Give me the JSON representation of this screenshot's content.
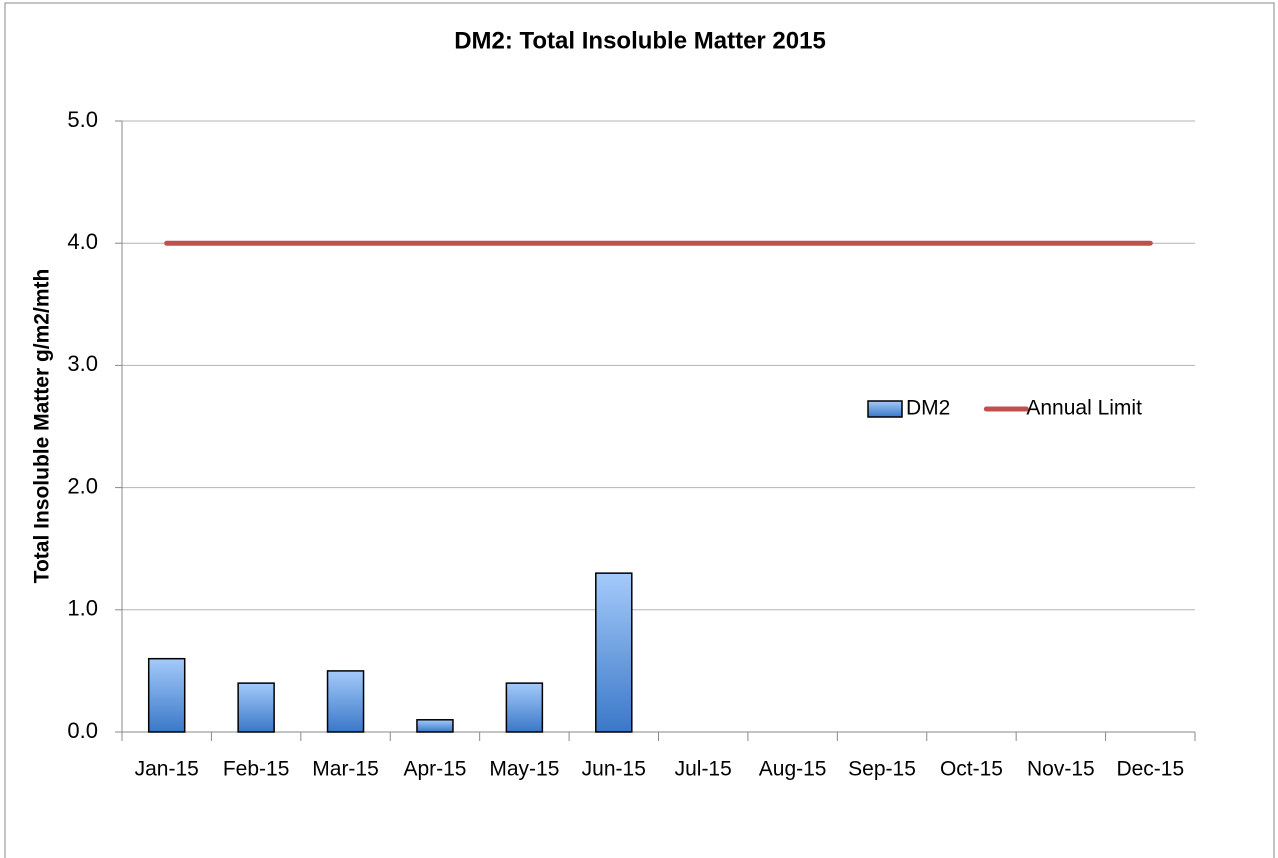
{
  "chart_data": {
    "type": "bar",
    "title": "DM2: Total Insoluble Matter 2015",
    "y_label": "Total Insoluble Matter  g/m2/mth",
    "categories": [
      "Jan-15",
      "Feb-15",
      "Mar-15",
      "Apr-15",
      "May-15",
      "Jun-15",
      "Jul-15",
      "Aug-15",
      "Sep-15",
      "Oct-15",
      "Nov-15",
      "Dec-15"
    ],
    "series": [
      {
        "name": "DM2",
        "type": "bar",
        "color": "#3a78c8",
        "values": [
          0.6,
          0.4,
          0.5,
          0.1,
          0.4,
          1.3,
          null,
          null,
          null,
          null,
          null,
          null
        ]
      },
      {
        "name": "Annual Limit",
        "type": "line",
        "color": "#c0504d",
        "values": [
          4,
          4,
          4,
          4,
          4,
          4,
          4,
          4,
          4,
          4,
          4,
          4
        ]
      }
    ],
    "ylim": [
      0,
      5
    ],
    "yticks": [
      {
        "value": 0,
        "label": "0.0"
      },
      {
        "value": 1,
        "label": "1.0"
      },
      {
        "value": 2,
        "label": "2.0"
      },
      {
        "value": 3,
        "label": "3.0"
      },
      {
        "value": 4,
        "label": "4.0"
      },
      {
        "value": 5,
        "label": "5.0"
      }
    ],
    "grid": true,
    "legend": "right"
  }
}
